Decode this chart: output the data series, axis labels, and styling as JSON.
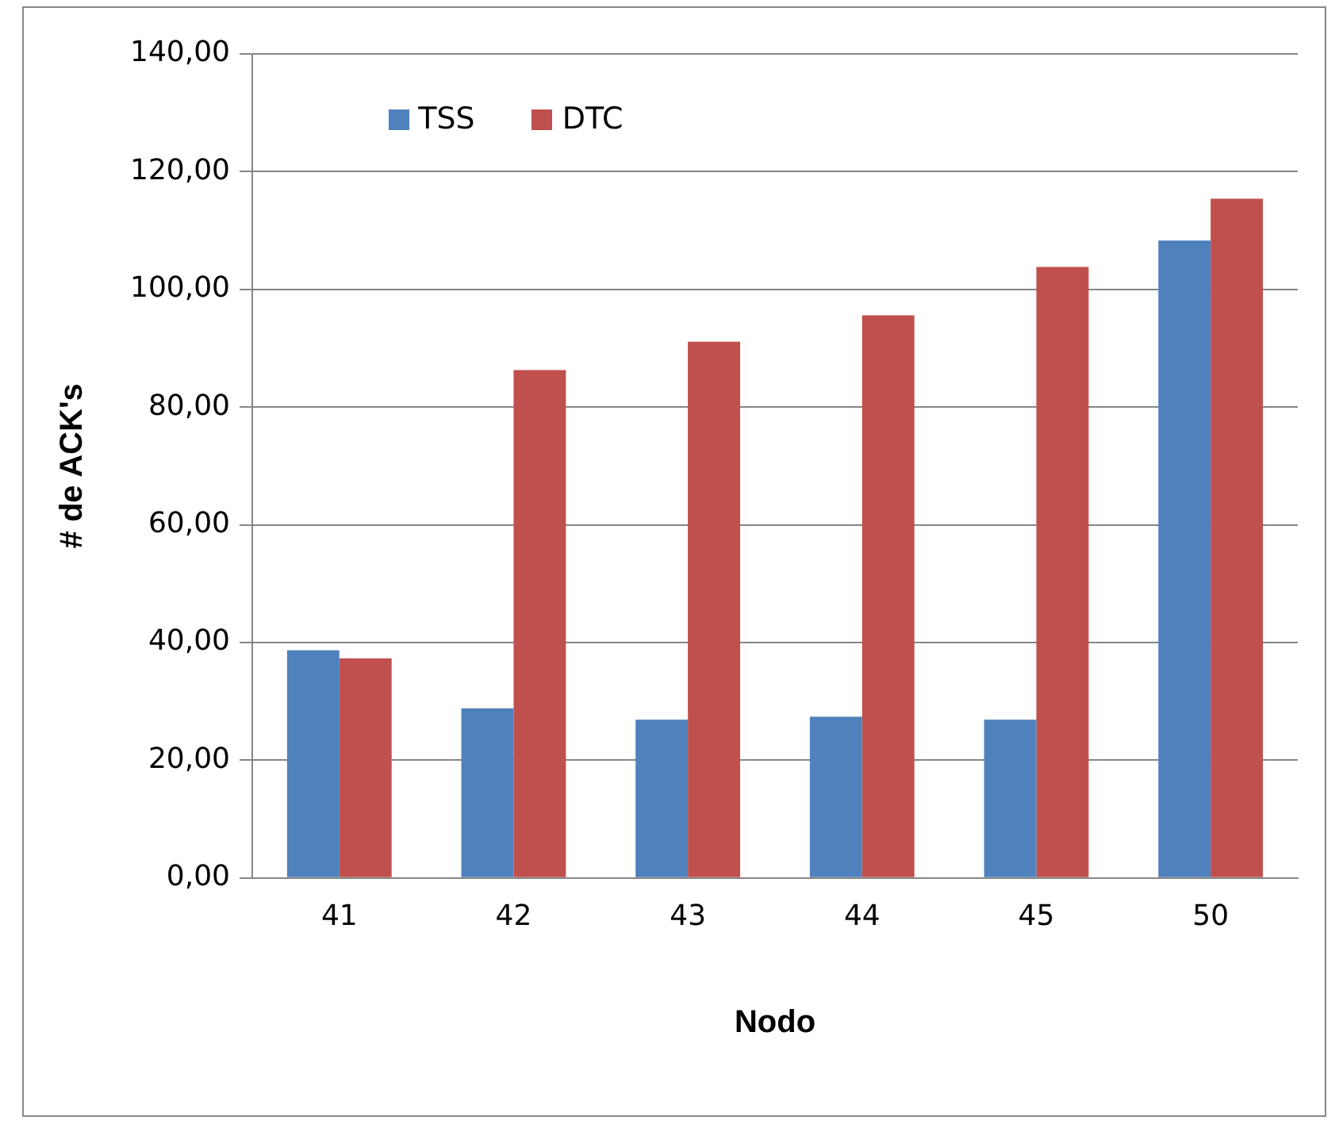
{
  "chart_data": {
    "type": "bar",
    "xlabel": "Nodo",
    "ylabel": "# de ACK's",
    "categories": [
      "41",
      "42",
      "43",
      "44",
      "45",
      "50"
    ],
    "series": [
      {
        "name": "TSS",
        "color": "#4f81bd",
        "values": [
          38.7,
          28.8,
          26.9,
          27.4,
          26.9,
          108.3
        ]
      },
      {
        "name": "DTC",
        "color": "#c0504d",
        "values": [
          37.3,
          86.3,
          91.1,
          95.6,
          103.8,
          115.4
        ]
      }
    ],
    "ylim": [
      0,
      140
    ],
    "yticks": [
      {
        "value": 0,
        "label": "0,00"
      },
      {
        "value": 20,
        "label": "20,00"
      },
      {
        "value": 40,
        "label": "40,00"
      },
      {
        "value": 60,
        "label": "60,00"
      },
      {
        "value": 80,
        "label": "80,00"
      },
      {
        "value": 100,
        "label": "100,00"
      },
      {
        "value": 120,
        "label": "120,00"
      },
      {
        "value": 140,
        "label": "140,00"
      }
    ],
    "grid": "y",
    "legend": "top left"
  }
}
